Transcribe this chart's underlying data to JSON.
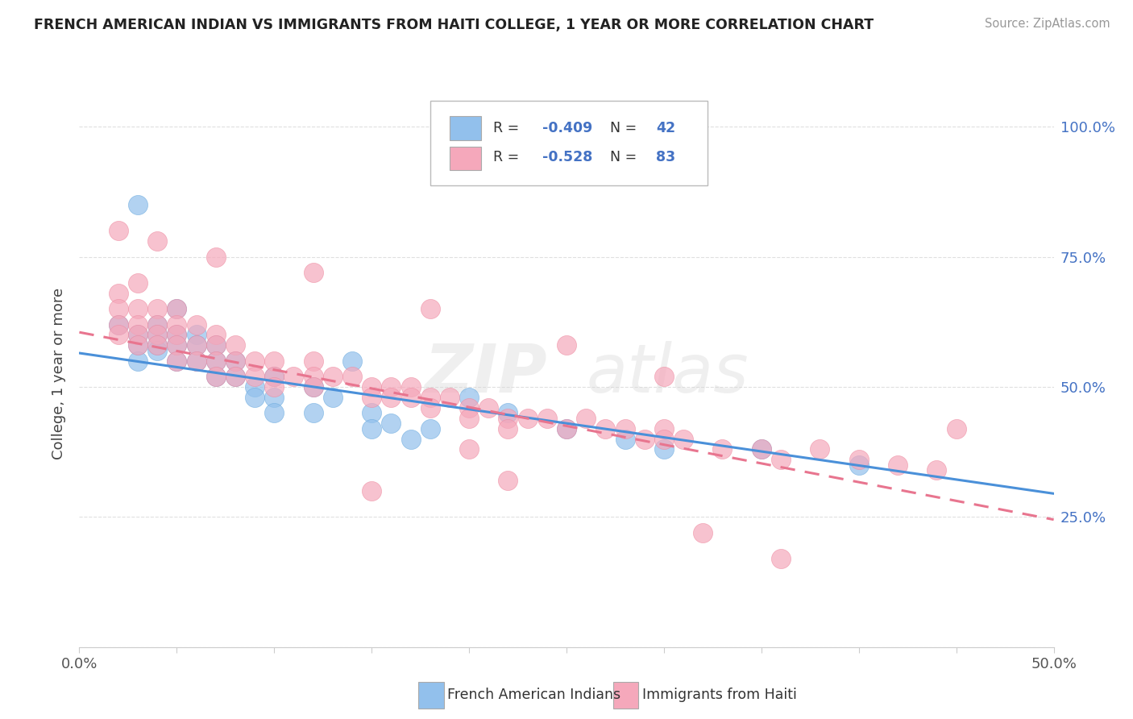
{
  "title": "FRENCH AMERICAN INDIAN VS IMMIGRANTS FROM HAITI COLLEGE, 1 YEAR OR MORE CORRELATION CHART",
  "source": "Source: ZipAtlas.com",
  "ylabel": "College, 1 year or more",
  "right_ytick_labels": [
    "100.0%",
    "75.0%",
    "50.0%",
    "25.0%"
  ],
  "right_ytick_pos": [
    1.0,
    0.75,
    0.5,
    0.25
  ],
  "xmin": 0.0,
  "xmax": 0.5,
  "ymin": 0.0,
  "ymax": 1.05,
  "legend_r1": "R = -0.409",
  "legend_n1": "N = 42",
  "legend_r2": "R = -0.528",
  "legend_n2": "N = 83",
  "blue_label": "French American Indians",
  "pink_label": "Immigrants from Haiti",
  "blue_color": "#92c0ec",
  "pink_color": "#f5a8bb",
  "blue_edge_color": "#6aaade",
  "pink_edge_color": "#ee8aa0",
  "blue_trend_color": "#4a90d9",
  "pink_trend_color": "#e8758f",
  "blue_scatter": [
    [
      0.02,
      0.62
    ],
    [
      0.03,
      0.6
    ],
    [
      0.03,
      0.58
    ],
    [
      0.03,
      0.55
    ],
    [
      0.04,
      0.62
    ],
    [
      0.04,
      0.6
    ],
    [
      0.04,
      0.58
    ],
    [
      0.04,
      0.57
    ],
    [
      0.05,
      0.65
    ],
    [
      0.05,
      0.6
    ],
    [
      0.05,
      0.58
    ],
    [
      0.05,
      0.55
    ],
    [
      0.06,
      0.6
    ],
    [
      0.06,
      0.58
    ],
    [
      0.06,
      0.55
    ],
    [
      0.07,
      0.58
    ],
    [
      0.07,
      0.55
    ],
    [
      0.07,
      0.52
    ],
    [
      0.08,
      0.55
    ],
    [
      0.08,
      0.52
    ],
    [
      0.09,
      0.5
    ],
    [
      0.09,
      0.48
    ],
    [
      0.1,
      0.52
    ],
    [
      0.1,
      0.48
    ],
    [
      0.1,
      0.45
    ],
    [
      0.12,
      0.5
    ],
    [
      0.12,
      0.45
    ],
    [
      0.13,
      0.48
    ],
    [
      0.14,
      0.55
    ],
    [
      0.15,
      0.45
    ],
    [
      0.15,
      0.42
    ],
    [
      0.16,
      0.43
    ],
    [
      0.17,
      0.4
    ],
    [
      0.18,
      0.42
    ],
    [
      0.2,
      0.48
    ],
    [
      0.22,
      0.45
    ],
    [
      0.25,
      0.42
    ],
    [
      0.28,
      0.4
    ],
    [
      0.3,
      0.38
    ],
    [
      0.35,
      0.38
    ],
    [
      0.4,
      0.35
    ],
    [
      0.03,
      0.85
    ]
  ],
  "pink_scatter": [
    [
      0.02,
      0.68
    ],
    [
      0.02,
      0.65
    ],
    [
      0.02,
      0.62
    ],
    [
      0.02,
      0.6
    ],
    [
      0.03,
      0.7
    ],
    [
      0.03,
      0.65
    ],
    [
      0.03,
      0.62
    ],
    [
      0.03,
      0.6
    ],
    [
      0.03,
      0.58
    ],
    [
      0.04,
      0.65
    ],
    [
      0.04,
      0.62
    ],
    [
      0.04,
      0.6
    ],
    [
      0.04,
      0.58
    ],
    [
      0.05,
      0.65
    ],
    [
      0.05,
      0.62
    ],
    [
      0.05,
      0.6
    ],
    [
      0.05,
      0.58
    ],
    [
      0.05,
      0.55
    ],
    [
      0.06,
      0.62
    ],
    [
      0.06,
      0.58
    ],
    [
      0.06,
      0.55
    ],
    [
      0.07,
      0.6
    ],
    [
      0.07,
      0.58
    ],
    [
      0.07,
      0.55
    ],
    [
      0.07,
      0.52
    ],
    [
      0.08,
      0.58
    ],
    [
      0.08,
      0.55
    ],
    [
      0.08,
      0.52
    ],
    [
      0.09,
      0.55
    ],
    [
      0.09,
      0.52
    ],
    [
      0.1,
      0.55
    ],
    [
      0.1,
      0.52
    ],
    [
      0.1,
      0.5
    ],
    [
      0.11,
      0.52
    ],
    [
      0.12,
      0.55
    ],
    [
      0.12,
      0.52
    ],
    [
      0.12,
      0.5
    ],
    [
      0.13,
      0.52
    ],
    [
      0.14,
      0.52
    ],
    [
      0.15,
      0.5
    ],
    [
      0.15,
      0.48
    ],
    [
      0.16,
      0.5
    ],
    [
      0.16,
      0.48
    ],
    [
      0.17,
      0.5
    ],
    [
      0.17,
      0.48
    ],
    [
      0.18,
      0.48
    ],
    [
      0.18,
      0.46
    ],
    [
      0.19,
      0.48
    ],
    [
      0.2,
      0.46
    ],
    [
      0.2,
      0.44
    ],
    [
      0.21,
      0.46
    ],
    [
      0.22,
      0.44
    ],
    [
      0.22,
      0.42
    ],
    [
      0.23,
      0.44
    ],
    [
      0.24,
      0.44
    ],
    [
      0.25,
      0.42
    ],
    [
      0.26,
      0.44
    ],
    [
      0.27,
      0.42
    ],
    [
      0.28,
      0.42
    ],
    [
      0.29,
      0.4
    ],
    [
      0.3,
      0.42
    ],
    [
      0.3,
      0.4
    ],
    [
      0.31,
      0.4
    ],
    [
      0.33,
      0.38
    ],
    [
      0.35,
      0.38
    ],
    [
      0.36,
      0.36
    ],
    [
      0.38,
      0.38
    ],
    [
      0.4,
      0.36
    ],
    [
      0.42,
      0.35
    ],
    [
      0.44,
      0.34
    ],
    [
      0.02,
      0.8
    ],
    [
      0.04,
      0.78
    ],
    [
      0.07,
      0.75
    ],
    [
      0.12,
      0.72
    ],
    [
      0.18,
      0.65
    ],
    [
      0.25,
      0.58
    ],
    [
      0.32,
      0.22
    ],
    [
      0.36,
      0.17
    ],
    [
      0.45,
      0.42
    ],
    [
      0.3,
      0.52
    ],
    [
      0.2,
      0.38
    ],
    [
      0.15,
      0.3
    ],
    [
      0.22,
      0.32
    ]
  ],
  "blue_trend_x": [
    0.0,
    0.5
  ],
  "blue_trend_y": [
    0.565,
    0.295
  ],
  "pink_trend_x": [
    0.0,
    0.5
  ],
  "pink_trend_y": [
    0.605,
    0.245
  ],
  "watermark_zip": "ZIP",
  "watermark_atlas": "atlas",
  "background_color": "#ffffff",
  "grid_color": "#e0e0e0",
  "text_color_blue": "#4472c4",
  "text_color_dark": "#333333"
}
